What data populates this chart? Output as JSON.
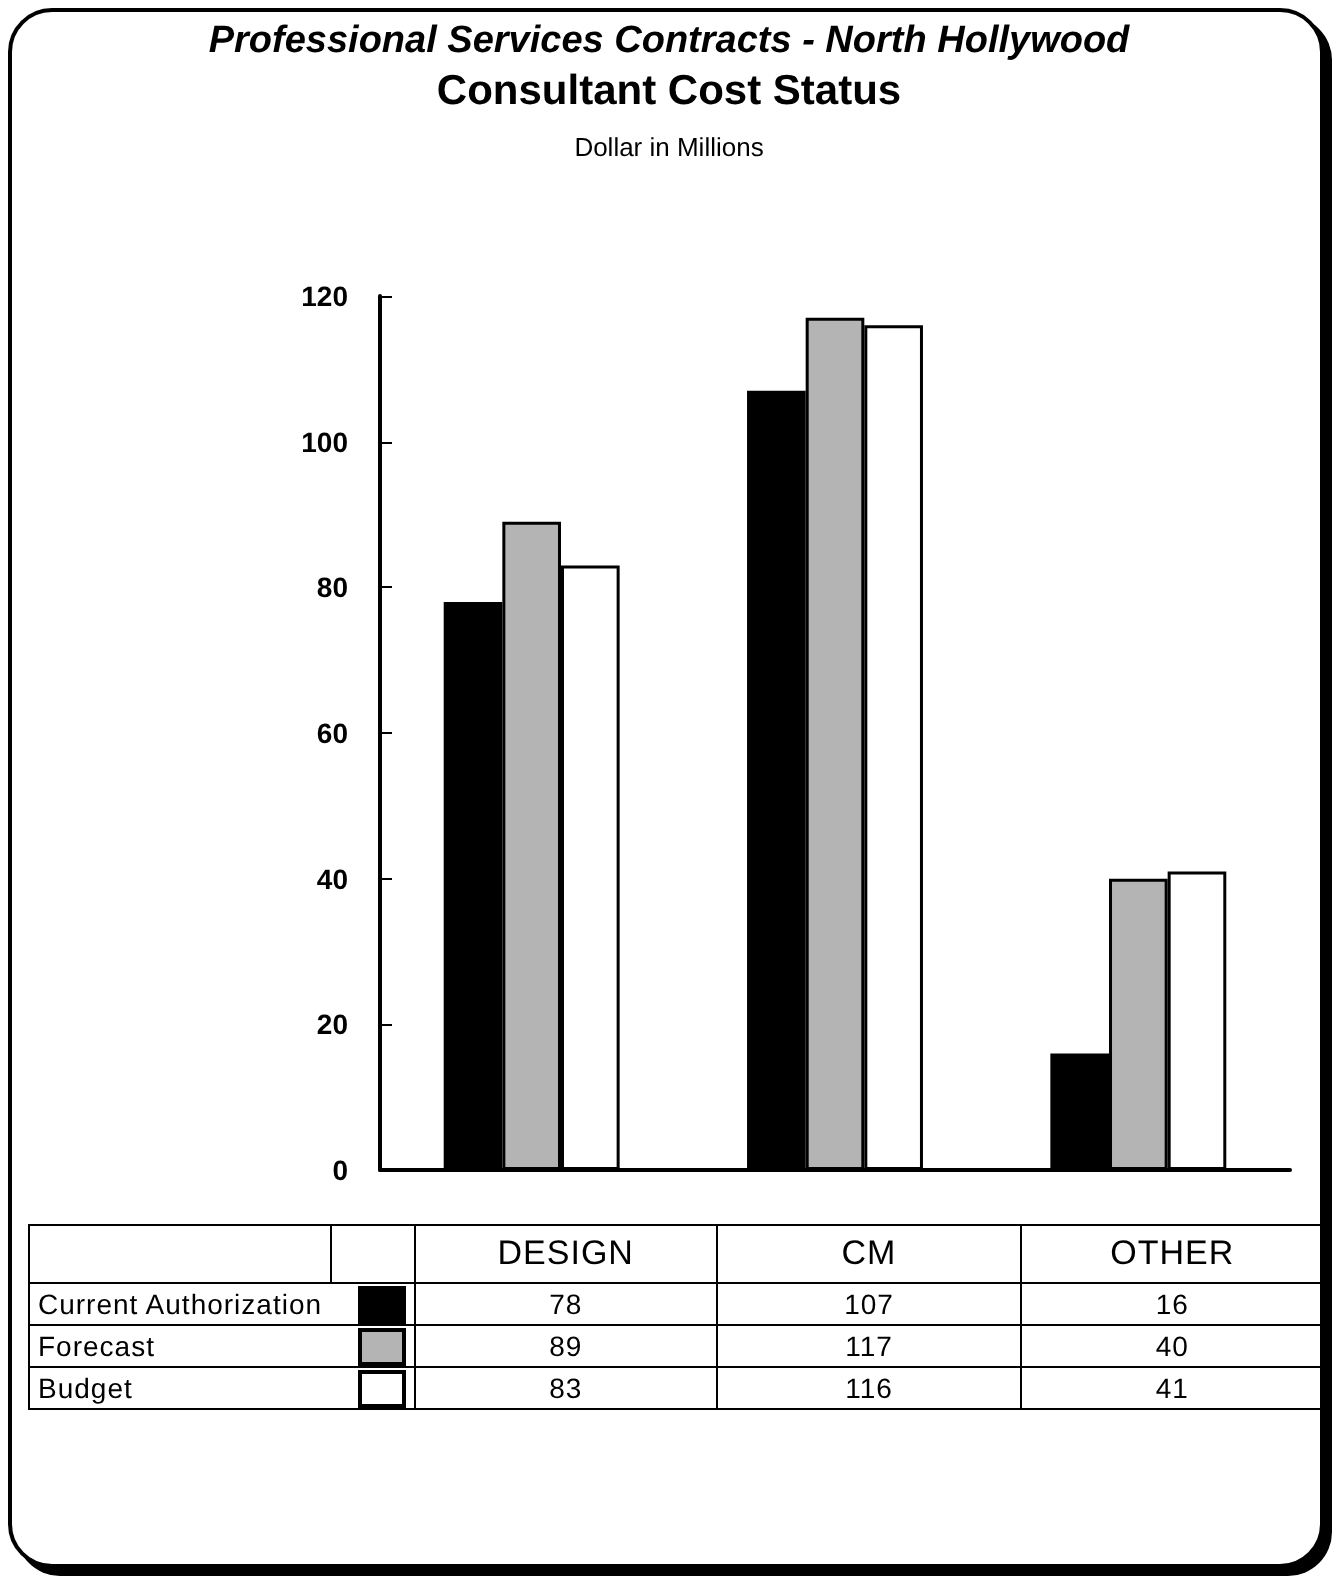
{
  "chart_data": {
    "type": "bar",
    "title": "Professional Services Contracts - North Hollywood",
    "subtitle": "Consultant Cost Status",
    "ylabel": "Dollar in Millions",
    "categories": [
      "DESIGN",
      "CM",
      "OTHER"
    ],
    "series": [
      {
        "name": "Current Authorization",
        "color": "#000000",
        "values": [
          78,
          107,
          16
        ]
      },
      {
        "name": "Forecast",
        "color": "#b4b4b4",
        "values": [
          89,
          117,
          40
        ]
      },
      {
        "name": "Budget",
        "color": "#ffffff",
        "values": [
          83,
          116,
          41
        ]
      }
    ],
    "ylim": [
      0,
      120
    ],
    "yticks": [
      0,
      20,
      40,
      60,
      80,
      100,
      120
    ],
    "grid": false,
    "legend": "bottom",
    "tick_labels": "y",
    "data_labels": true
  }
}
